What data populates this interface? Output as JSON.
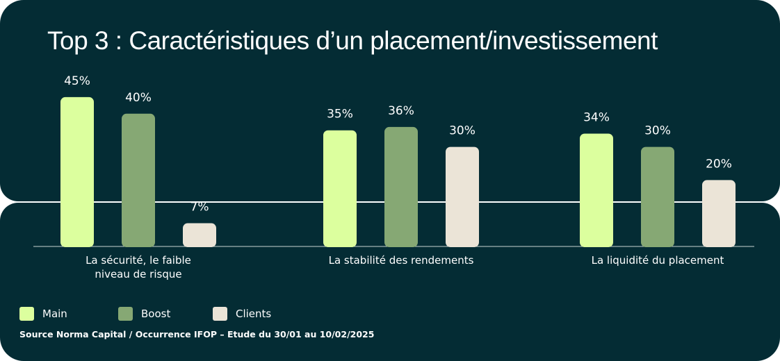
{
  "title": "Top 3 : Caractéristiques d’un placement/investissement",
  "chart_data": {
    "type": "bar",
    "categories": [
      [
        "La sécurité, le faible",
        "niveau de risque"
      ],
      [
        "La stabilité des rendements"
      ],
      [
        "La liquidité du placement"
      ]
    ],
    "series": [
      {
        "name": "Main",
        "color": "#dcff9e",
        "values": [
          45,
          35,
          34
        ]
      },
      {
        "name": "Boost",
        "color": "#86a874",
        "values": [
          40,
          36,
          30
        ]
      },
      {
        "name": "Clients",
        "color": "#ebe4d7",
        "values": [
          7,
          30,
          20
        ]
      }
    ],
    "value_suffix": "%",
    "ylim": [
      0,
      45
    ],
    "grid": false,
    "legend_position": "bottom-left"
  },
  "source": "Source Norma Capital / Occurrence IFOP – Etude du 30/01 au 10/02/2025"
}
